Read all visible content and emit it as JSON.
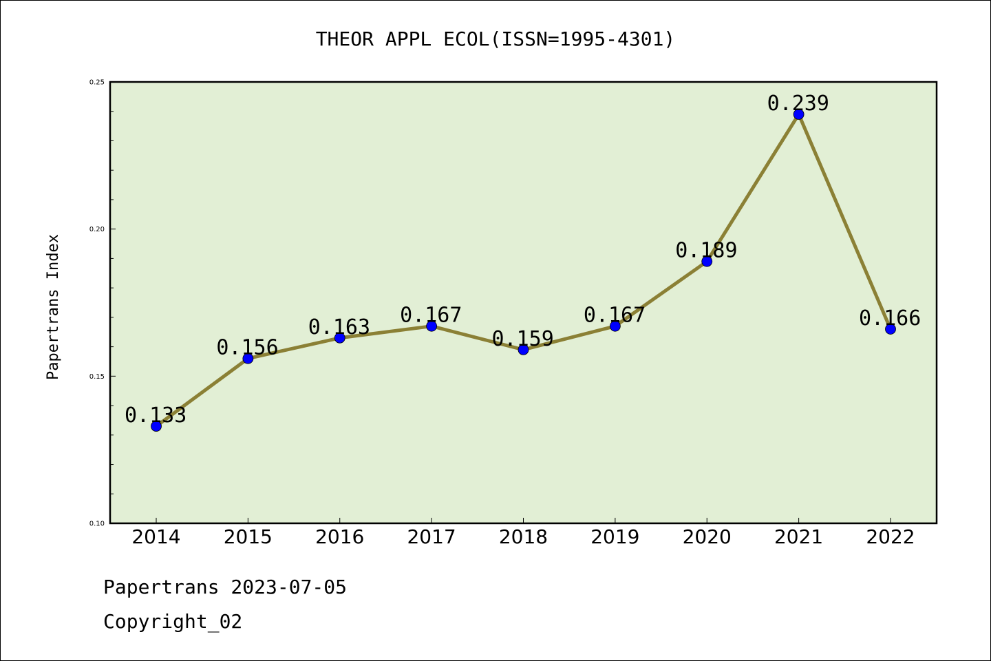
{
  "chart_data": {
    "type": "line",
    "title": "THEOR APPL ECOL(ISSN=1995-4301)",
    "xlabel": "",
    "ylabel": "Papertrans Index",
    "categories": [
      "2014",
      "2015",
      "2016",
      "2017",
      "2018",
      "2019",
      "2020",
      "2021",
      "2022"
    ],
    "series": [
      {
        "values": [
          0.133,
          0.156,
          0.163,
          0.167,
          0.159,
          0.167,
          0.189,
          0.239,
          0.166
        ],
        "data_labels": [
          "0.133",
          "0.156",
          "0.163",
          "0.167",
          "0.159",
          "0.167",
          "0.189",
          "0.239",
          "0.166"
        ],
        "line_color": "#8b8035",
        "marker_color": "#0000ff"
      }
    ],
    "ylim": [
      0.1,
      0.25
    ],
    "yticks": [
      "0.10",
      "0.15",
      "0.20",
      "0.25"
    ],
    "grid": false,
    "legend": "none",
    "plot_background": "#e2efd5"
  },
  "footer": {
    "date_text": "Papertrans 2023-07-05",
    "copyright_text": "Copyright_02"
  }
}
